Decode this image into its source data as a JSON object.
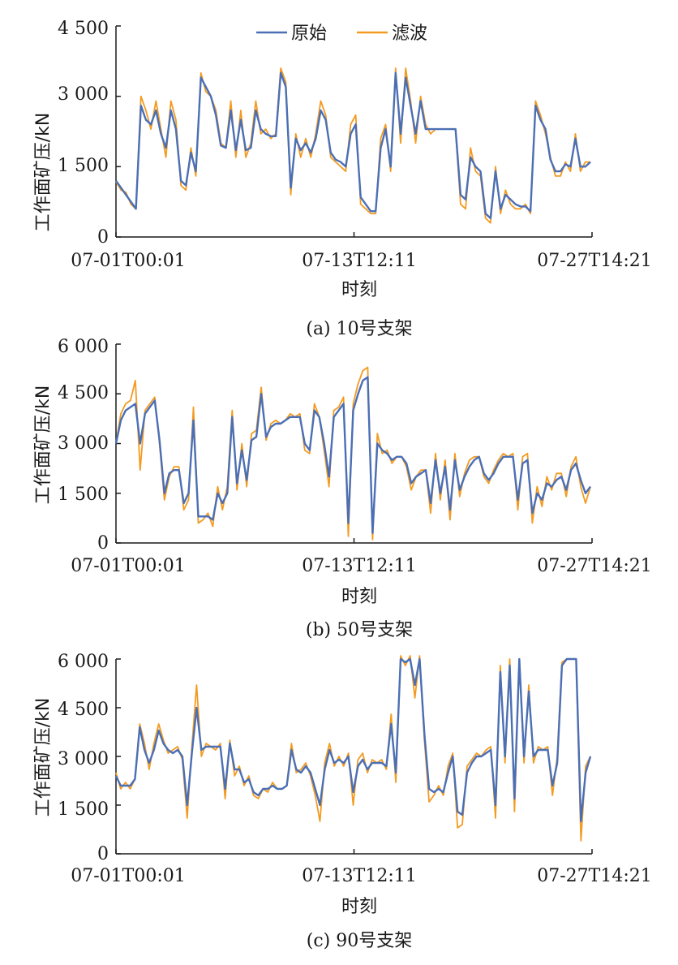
{
  "figure": {
    "legend": {
      "series": [
        "原始",
        "滤波"
      ],
      "position": "top-center"
    },
    "colors": {
      "原始": "#4b6fb5",
      "滤波": "#f39b21",
      "axis": "#1a1a1a"
    }
  },
  "chart_data": [
    {
      "type": "line",
      "caption": "(a)  10号支架",
      "xlabel": "时刻",
      "ylabel": "工作面矿压/kN",
      "x_ticks": [
        "07-01T00:01",
        "07-13T12:11",
        "07-27T14:21"
      ],
      "y_ticks": [
        "0",
        "1 500",
        "3 000",
        "4 500"
      ],
      "ylim": [
        0,
        4500
      ],
      "xlim": [
        "07-01T00:01",
        "07-28T00:00"
      ],
      "grid": false,
      "show_legend": true,
      "series": [
        {
          "name": "原始",
          "values": [
            1200,
            1050,
            900,
            750,
            600,
            2800,
            2500,
            2400,
            2700,
            2200,
            1900,
            2700,
            2300,
            1200,
            1100,
            1800,
            1400,
            3400,
            3200,
            3000,
            2600,
            1950,
            1900,
            2700,
            1850,
            2500,
            1850,
            1900,
            2700,
            2300,
            2200,
            2150,
            2150,
            3500,
            3200,
            1050,
            2100,
            1850,
            2000,
            1800,
            2100,
            2700,
            2500,
            1800,
            1650,
            1600,
            1500,
            2200,
            2400,
            850,
            700,
            550,
            550,
            1900,
            2300,
            1500,
            3500,
            2200,
            3400,
            2800,
            2200,
            2900,
            2300,
            2300,
            2300,
            2300,
            2300,
            2300,
            2300,
            900,
            800,
            1700,
            1500,
            1400,
            500,
            400,
            1400,
            600,
            900,
            800,
            700,
            650,
            650,
            550,
            2800,
            2500,
            2300,
            1650,
            1400,
            1400,
            1550,
            1500,
            2100,
            1500,
            1500,
            1600
          ]
        },
        {
          "name": "滤波",
          "values": [
            1180,
            1000,
            950,
            700,
            600,
            3000,
            2700,
            2300,
            2900,
            2300,
            1700,
            2900,
            2500,
            1100,
            1000,
            1900,
            1300,
            3500,
            3100,
            3000,
            2700,
            2000,
            1900,
            2900,
            1700,
            2700,
            1700,
            2000,
            2900,
            2200,
            2300,
            2100,
            2200,
            3600,
            3300,
            900,
            2200,
            1700,
            2100,
            1700,
            2200,
            2900,
            2600,
            1700,
            1600,
            1500,
            1400,
            2400,
            2600,
            700,
            600,
            500,
            500,
            2100,
            2400,
            1400,
            3600,
            2000,
            3600,
            2900,
            2000,
            3000,
            2400,
            2200,
            2300,
            2300,
            2300,
            2300,
            2300,
            700,
            600,
            1900,
            1400,
            1300,
            400,
            300,
            1500,
            500,
            1000,
            700,
            600,
            600,
            700,
            500,
            2900,
            2600,
            2200,
            1700,
            1300,
            1300,
            1600,
            1400,
            2200,
            1400,
            1600,
            1600
          ]
        }
      ]
    },
    {
      "type": "line",
      "caption": "(b)  50号支架",
      "xlabel": "时刻",
      "ylabel": "工作面矿压/kN",
      "x_ticks": [
        "07-01T00:01",
        "07-13T12:11",
        "07-27T14:21"
      ],
      "y_ticks": [
        "0",
        "1 500",
        "3 000",
        "4 500",
        "6 000"
      ],
      "ylim": [
        0,
        6000
      ],
      "xlim": [
        "07-01T00:01",
        "07-28T00:00"
      ],
      "grid": false,
      "show_legend": false,
      "series": [
        {
          "name": "原始",
          "values": [
            3000,
            3700,
            4000,
            4100,
            4200,
            3000,
            3900,
            4100,
            4300,
            3100,
            1500,
            2100,
            2200,
            2200,
            1200,
            1500,
            3700,
            800,
            800,
            800,
            700,
            1500,
            1200,
            1500,
            3800,
            1800,
            2800,
            1900,
            3100,
            3200,
            4500,
            3200,
            3500,
            3600,
            3600,
            3700,
            3800,
            3800,
            3800,
            3000,
            2800,
            4000,
            3800,
            3000,
            2000,
            3800,
            4000,
            4200,
            600,
            4000,
            4500,
            4900,
            5000,
            300,
            3000,
            2800,
            2700,
            2500,
            2600,
            2600,
            2400,
            1800,
            2000,
            2100,
            2200,
            1200,
            2500,
            1500,
            2300,
            1000,
            2500,
            1600,
            2000,
            2300,
            2500,
            2600,
            2100,
            1900,
            2100,
            2400,
            2600,
            2600,
            2600,
            1300,
            2400,
            2500,
            900,
            1500,
            1300,
            1800,
            1700,
            1900,
            2000,
            1600,
            2200,
            2400,
            1900,
            1500,
            1700
          ]
        },
        {
          "name": "滤波",
          "values": [
            3000,
            3900,
            4200,
            4300,
            4900,
            2200,
            4000,
            4200,
            4400,
            3000,
            1300,
            2000,
            2300,
            2300,
            1000,
            1300,
            4100,
            600,
            700,
            900,
            500,
            1700,
            1000,
            1700,
            4000,
            1600,
            3000,
            1700,
            3300,
            3400,
            4700,
            3100,
            3600,
            3700,
            3600,
            3700,
            3900,
            3800,
            3900,
            2800,
            2700,
            4200,
            3800,
            2800,
            1700,
            4000,
            4100,
            4400,
            200,
            4200,
            4800,
            5200,
            5300,
            100,
            3300,
            2700,
            2800,
            2400,
            2600,
            2600,
            2300,
            1600,
            2000,
            2200,
            2200,
            900,
            2700,
            1300,
            2500,
            700,
            2700,
            1400,
            2100,
            2500,
            2600,
            2600,
            2000,
            1800,
            2200,
            2500,
            2700,
            2600,
            2700,
            1000,
            2600,
            2700,
            600,
            1700,
            1100,
            2000,
            1600,
            2100,
            2100,
            1400,
            2300,
            2600,
            1700,
            1200,
            1700
          ]
        }
      ]
    },
    {
      "type": "line",
      "caption": "(c)  90号支架",
      "xlabel": "时刻",
      "ylabel": "工作面矿压/kN",
      "x_ticks": [
        "07-01T00:01",
        "07-13T12:11",
        "07-27T14:21"
      ],
      "y_ticks": [
        "0",
        "1 500",
        "3 000",
        "4 500",
        "6 000"
      ],
      "ylim": [
        0,
        6000
      ],
      "xlim": [
        "07-01T00:01",
        "07-28T00:00"
      ],
      "grid": false,
      "show_legend": false,
      "series": [
        {
          "name": "原始",
          "values": [
            2400,
            2100,
            2100,
            2100,
            2300,
            3900,
            3200,
            2800,
            3200,
            3800,
            3400,
            3200,
            3100,
            3200,
            3000,
            1500,
            3100,
            4500,
            3200,
            3300,
            3300,
            3300,
            3300,
            2000,
            3400,
            2600,
            2600,
            2200,
            2300,
            1900,
            1800,
            2000,
            2000,
            2100,
            2000,
            2000,
            2100,
            3200,
            2600,
            2500,
            2700,
            2500,
            2000,
            1500,
            2600,
            3200,
            2800,
            2900,
            2800,
            3000,
            1900,
            2700,
            2900,
            2600,
            2800,
            2800,
            2800,
            2700,
            4000,
            2500,
            6000,
            5900,
            6000,
            5200,
            6000,
            3700,
            2000,
            1900,
            2000,
            1900,
            2500,
            3000,
            1300,
            1200,
            2500,
            2800,
            3000,
            3000,
            3100,
            3200,
            1500,
            5600,
            3000,
            5800,
            1700,
            6000,
            3000,
            5000,
            3000,
            3200,
            3200,
            3200,
            2100,
            2800,
            5800,
            6000,
            6000,
            6000,
            1000,
            2500,
            3000
          ]
        },
        {
          "name": "滤波",
          "values": [
            2500,
            2000,
            2200,
            2000,
            2300,
            4000,
            3400,
            2600,
            3400,
            4000,
            3500,
            3100,
            3200,
            3300,
            2900,
            1100,
            3300,
            5200,
            3000,
            3400,
            3300,
            3200,
            3400,
            1700,
            3500,
            2400,
            2700,
            2100,
            2400,
            1800,
            1700,
            2000,
            1900,
            2200,
            2000,
            2000,
            2100,
            3400,
            2500,
            2600,
            2800,
            2400,
            1800,
            1000,
            2800,
            3400,
            2700,
            3000,
            2700,
            3100,
            1500,
            2900,
            3100,
            2500,
            2900,
            2800,
            2900,
            2600,
            4300,
            2200,
            6100,
            5800,
            6100,
            4800,
            6100,
            3500,
            1600,
            1800,
            2100,
            1800,
            2700,
            3100,
            800,
            900,
            2700,
            2900,
            3100,
            3000,
            3200,
            3300,
            1100,
            5800,
            2800,
            6000,
            1300,
            6000,
            2800,
            5200,
            2800,
            3300,
            3200,
            3300,
            1800,
            3000,
            5900,
            6000,
            6000,
            6000,
            400,
            2700,
            3000
          ]
        }
      ]
    }
  ]
}
